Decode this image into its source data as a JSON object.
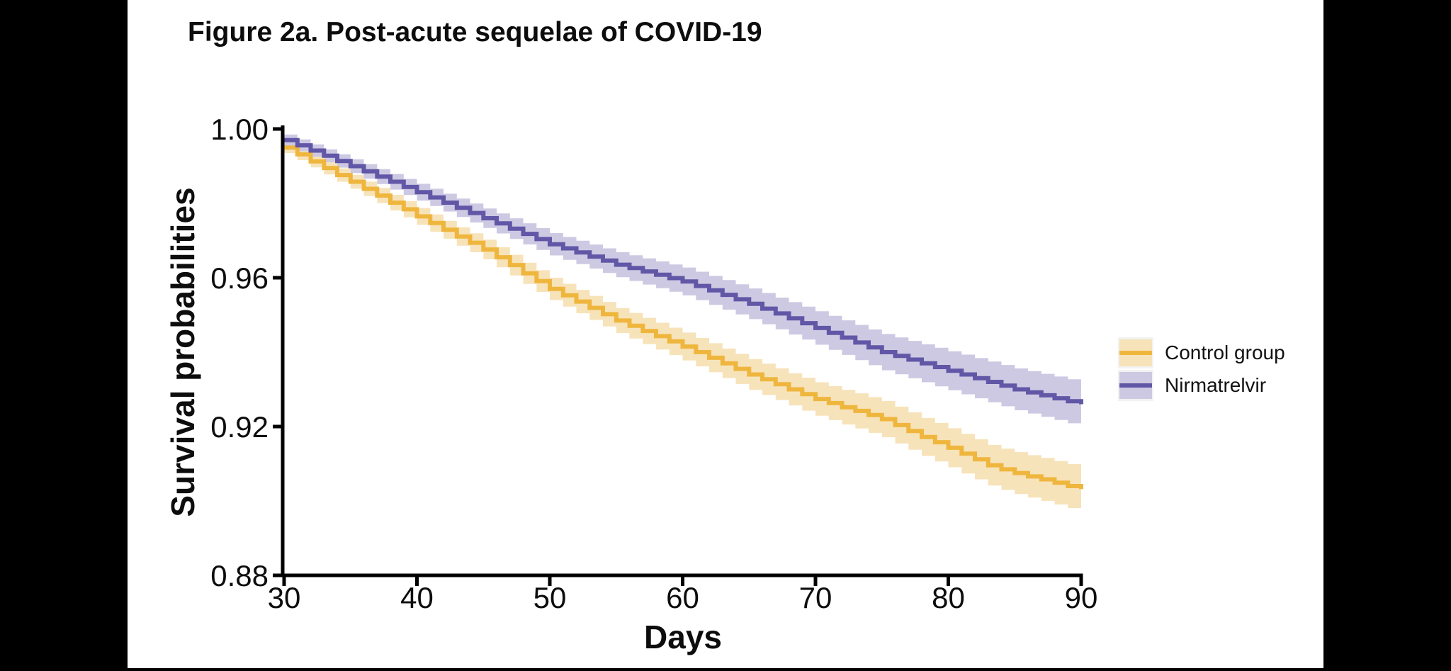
{
  "chart_data": {
    "type": "line",
    "subtype": "kaplan-meier-step-with-confidence-bands",
    "title": "Figure 2a. Post-acute sequelae of COVID-19",
    "xlabel": "Days",
    "ylabel": "Survival probabilities",
    "xlim": [
      30,
      90
    ],
    "ylim": [
      0.88,
      1.0
    ],
    "xticks": [
      30,
      40,
      50,
      60,
      70,
      80,
      90
    ],
    "yticks": [
      1.0,
      0.96,
      0.92,
      0.88
    ],
    "ytick_labels": [
      "1.00",
      "0.96",
      "0.92",
      "0.88"
    ],
    "grid": false,
    "legend_position": "right",
    "background": "#ffffff",
    "axis_color": "#000000",
    "x": [
      30,
      31,
      32,
      33,
      34,
      35,
      36,
      37,
      38,
      39,
      40,
      41,
      42,
      43,
      44,
      45,
      46,
      47,
      48,
      49,
      50,
      51,
      52,
      53,
      54,
      55,
      56,
      57,
      58,
      59,
      60,
      61,
      62,
      63,
      64,
      65,
      66,
      67,
      68,
      69,
      70,
      71,
      72,
      73,
      74,
      75,
      76,
      77,
      78,
      79,
      80,
      81,
      82,
      83,
      84,
      85,
      86,
      87,
      88,
      89,
      90
    ],
    "ci_halfwidth": {
      "start": 0.0015,
      "end": 0.006,
      "interpolation": "linear"
    },
    "series": [
      {
        "name": "Control group",
        "color": "#EFB63E",
        "band_color": "#F7E3BA",
        "values": [
          0.995,
          0.9932,
          0.9913,
          0.9895,
          0.9876,
          0.9858,
          0.9839,
          0.9821,
          0.9802,
          0.9784,
          0.9765,
          0.9747,
          0.9729,
          0.9711,
          0.9694,
          0.9676,
          0.9655,
          0.9634,
          0.9612,
          0.9591,
          0.957,
          0.9553,
          0.9536,
          0.9519,
          0.9502,
          0.9485,
          0.9471,
          0.9457,
          0.9443,
          0.9429,
          0.9415,
          0.94,
          0.9385,
          0.937,
          0.9355,
          0.934,
          0.9327,
          0.9314,
          0.93,
          0.9287,
          0.9274,
          0.9263,
          0.9252,
          0.9242,
          0.9231,
          0.922,
          0.9204,
          0.9188,
          0.9172,
          0.9158,
          0.9143,
          0.9127,
          0.9112,
          0.9096,
          0.9085,
          0.9075,
          0.9066,
          0.9058,
          0.9049,
          0.904,
          0.9032
        ]
      },
      {
        "name": "Nirmatrelvir",
        "color": "#6157A6",
        "band_color": "#CDC9E3",
        "values": [
          0.997,
          0.9956,
          0.9942,
          0.9928,
          0.9914,
          0.99,
          0.9886,
          0.9872,
          0.9858,
          0.9844,
          0.983,
          0.9816,
          0.9802,
          0.9788,
          0.9774,
          0.976,
          0.9746,
          0.9732,
          0.9718,
          0.9704,
          0.969,
          0.9679,
          0.9668,
          0.9657,
          0.9646,
          0.9635,
          0.9626,
          0.9617,
          0.9608,
          0.9599,
          0.959,
          0.9578,
          0.9566,
          0.9554,
          0.9542,
          0.953,
          0.9517,
          0.9504,
          0.9491,
          0.9478,
          0.9465,
          0.9452,
          0.9439,
          0.9426,
          0.9413,
          0.94,
          0.939,
          0.938,
          0.937,
          0.936,
          0.935,
          0.934,
          0.933,
          0.932,
          0.931,
          0.93,
          0.9292,
          0.9284,
          0.9276,
          0.9268,
          0.926
        ]
      }
    ]
  },
  "legend": {
    "items": [
      {
        "label": "Control group"
      },
      {
        "label": "Nirmatrelvir"
      }
    ]
  }
}
